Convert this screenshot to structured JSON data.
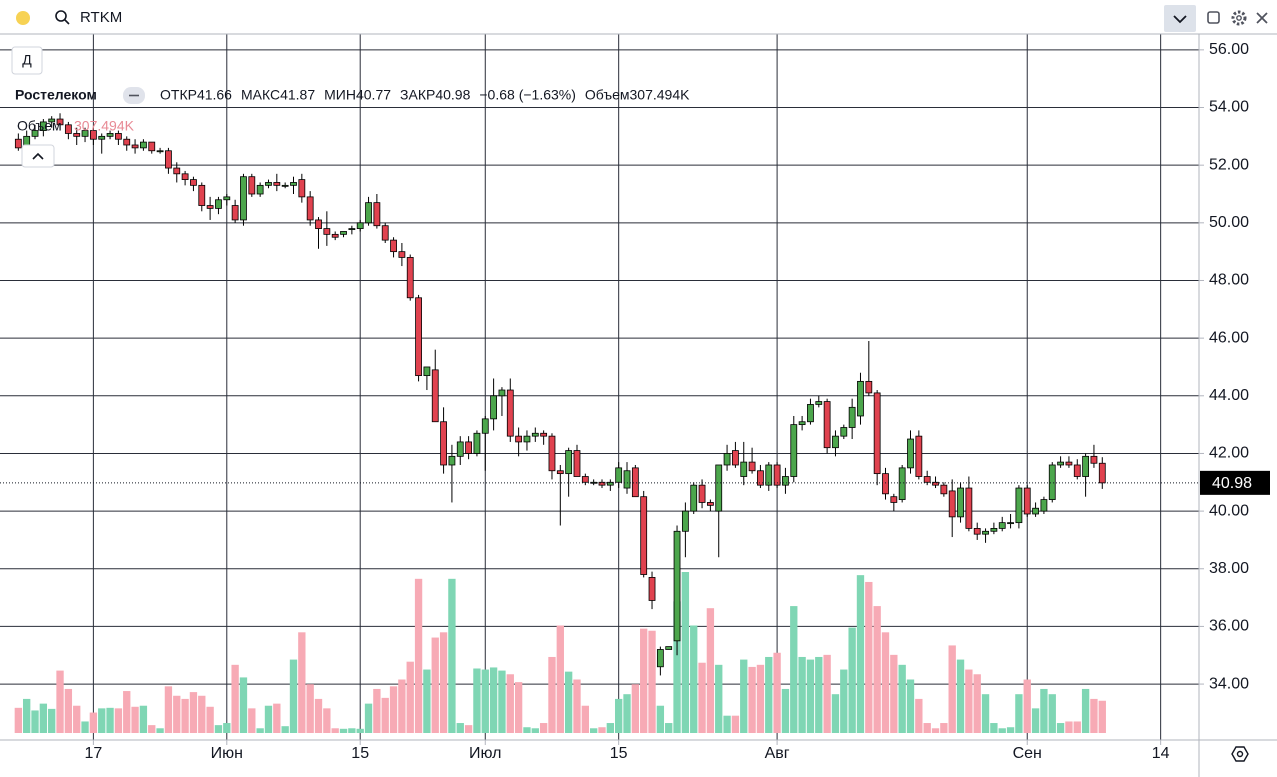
{
  "toolbar": {
    "symbol": "RTKM",
    "interval": "Д"
  },
  "chart_data": {
    "type": "candlestick",
    "legend": {
      "name": "Ростелеком",
      "open_label": "ОТКР",
      "high_label": "МАКС",
      "low_label": "МИН",
      "close_label": "ЗАКР",
      "change": "−0.68 (−1.63%)",
      "volume_name": "Объем",
      "volume_label": "307.494K"
    },
    "open": [
      52.9,
      52.6,
      53.0,
      53.2,
      53.5,
      53.6,
      53.4,
      53.1,
      53.0,
      53.2,
      52.9,
      53.0,
      53.1,
      52.9,
      52.7,
      52.6,
      52.8,
      52.5,
      52.5,
      51.9,
      51.7,
      51.5,
      51.3,
      50.6,
      50.5,
      50.8,
      50.6,
      50.1,
      51.6,
      51.0,
      51.3,
      51.4,
      51.3,
      51.3,
      51.5,
      50.9,
      50.1,
      49.8,
      49.6,
      49.6,
      49.8,
      49.8,
      50.0,
      50.7,
      49.9,
      49.4,
      49.0,
      48.8,
      47.4,
      44.7,
      44.9,
      43.1,
      41.6,
      41.9,
      42.4,
      42.0,
      42.7,
      43.2,
      44.0,
      44.2,
      42.6,
      42.4,
      42.6,
      42.7,
      42.6,
      41.4,
      41.3,
      42.1,
      41.2,
      41.0,
      41.0,
      40.9,
      41.0,
      40.8,
      41.5,
      40.5,
      37.7,
      34.6,
      35.2,
      35.5,
      39.3,
      40.0,
      40.9,
      40.3,
      40.0,
      41.6,
      42.1,
      41.2,
      41.7,
      41.4,
      40.9,
      41.6,
      40.9,
      41.2,
      43.0,
      43.1,
      43.7,
      43.8,
      42.2,
      42.6,
      42.9,
      43.3,
      44.5,
      44.1,
      41.3,
      40.5,
      40.4,
      41.5,
      42.6,
      41.2,
      41.0,
      40.9,
      40.7,
      39.8,
      40.8,
      39.4,
      39.2,
      39.3,
      39.4,
      39.6,
      39.6,
      40.8,
      39.9,
      40.0,
      40.4,
      41.6,
      41.7,
      41.6,
      41.2,
      41.9,
      41.66
    ],
    "high": [
      53.1,
      53.2,
      53.4,
      53.6,
      53.7,
      53.8,
      53.5,
      53.3,
      53.3,
      53.3,
      53.1,
      53.2,
      53.2,
      53.0,
      52.9,
      52.9,
      52.8,
      52.6,
      52.6,
      52.1,
      51.8,
      51.6,
      51.4,
      50.9,
      50.9,
      51.0,
      50.8,
      51.7,
      51.7,
      51.4,
      51.5,
      51.7,
      51.4,
      51.6,
      51.7,
      51.1,
      50.2,
      50.4,
      49.7,
      49.7,
      49.9,
      50.1,
      50.9,
      51.0,
      50.0,
      49.5,
      49.3,
      48.9,
      47.5,
      45.0,
      45.6,
      43.6,
      42.3,
      42.6,
      42.6,
      42.8,
      43.3,
      44.6,
      44.3,
      44.6,
      42.9,
      42.8,
      42.9,
      42.8,
      42.7,
      41.6,
      42.2,
      42.3,
      41.3,
      41.1,
      41.1,
      41.1,
      41.7,
      41.7,
      41.6,
      40.7,
      37.9,
      35.3,
      35.3,
      39.5,
      40.3,
      41.0,
      41.1,
      40.4,
      41.6,
      42.3,
      42.4,
      42.4,
      42.2,
      41.6,
      41.7,
      41.7,
      41.5,
      43.3,
      43.3,
      43.9,
      44.0,
      43.9,
      42.8,
      43.0,
      43.9,
      44.8,
      45.9,
      44.2,
      41.5,
      40.6,
      41.6,
      42.8,
      42.8,
      41.4,
      41.2,
      41.0,
      41.1,
      41.0,
      41.2,
      39.6,
      39.4,
      39.6,
      39.8,
      39.9,
      40.9,
      40.9,
      40.3,
      40.5,
      41.7,
      41.9,
      41.9,
      41.8,
      42.0,
      42.3,
      41.87
    ],
    "low": [
      52.5,
      52.5,
      52.9,
      53.0,
      53.3,
      53.2,
      52.9,
      52.7,
      52.8,
      52.7,
      52.4,
      52.9,
      52.7,
      52.5,
      52.4,
      52.5,
      52.4,
      52.4,
      51.7,
      51.4,
      51.3,
      51.1,
      50.4,
      50.1,
      50.3,
      50.6,
      50.0,
      49.9,
      50.9,
      50.9,
      51.2,
      51.1,
      51.2,
      51.0,
      50.7,
      49.9,
      49.1,
      49.2,
      49.4,
      49.5,
      49.6,
      49.7,
      49.9,
      49.8,
      49.3,
      48.8,
      48.5,
      47.3,
      44.5,
      44.2,
      43.1,
      41.3,
      40.3,
      41.6,
      41.8,
      41.9,
      41.4,
      42.8,
      43.3,
      42.4,
      41.9,
      42.1,
      42.4,
      42.3,
      41.1,
      39.5,
      40.5,
      41.2,
      40.9,
      40.9,
      40.8,
      40.7,
      40.8,
      40.6,
      40.5,
      37.7,
      36.6,
      34.3,
      35.2,
      35.0,
      38.4,
      39.9,
      40.1,
      40.0,
      38.4,
      41.4,
      41.5,
      40.9,
      41.3,
      40.8,
      40.7,
      40.8,
      40.6,
      41.0,
      42.8,
      43.0,
      43.6,
      42.0,
      41.9,
      42.5,
      42.5,
      43.0,
      44.0,
      40.9,
      40.4,
      40.0,
      40.3,
      41.3,
      41.1,
      40.9,
      40.8,
      40.5,
      39.1,
      39.6,
      39.3,
      39.0,
      38.9,
      39.2,
      39.3,
      39.4,
      39.4,
      39.8,
      39.8,
      39.9,
      40.3,
      41.5,
      41.5,
      41.1,
      40.5,
      41.5,
      40.77
    ],
    "close": [
      52.6,
      53.0,
      53.2,
      53.5,
      53.6,
      53.4,
      53.1,
      53.0,
      53.2,
      52.9,
      53.0,
      53.1,
      52.9,
      52.7,
      52.6,
      52.8,
      52.5,
      52.5,
      51.9,
      51.7,
      51.5,
      51.3,
      50.6,
      50.5,
      50.8,
      50.9,
      50.1,
      51.6,
      51.0,
      51.3,
      51.4,
      51.3,
      51.3,
      51.4,
      50.9,
      50.1,
      49.8,
      49.6,
      49.5,
      49.7,
      49.8,
      50.0,
      50.7,
      49.9,
      49.4,
      49.0,
      48.8,
      47.4,
      44.7,
      45.0,
      43.1,
      41.6,
      41.9,
      42.4,
      42.0,
      42.7,
      43.2,
      44.0,
      44.2,
      42.6,
      42.4,
      42.6,
      42.7,
      42.6,
      41.4,
      41.3,
      42.1,
      41.2,
      41.0,
      41.0,
      40.9,
      41.0,
      41.5,
      41.4,
      40.5,
      37.8,
      36.9,
      35.2,
      35.3,
      39.3,
      40.0,
      40.9,
      40.3,
      40.2,
      41.6,
      42.0,
      41.6,
      41.7,
      41.4,
      40.9,
      41.6,
      40.9,
      41.2,
      43.0,
      43.1,
      43.7,
      43.8,
      42.2,
      42.6,
      42.9,
      43.6,
      44.5,
      44.1,
      41.3,
      40.6,
      40.3,
      41.5,
      42.5,
      41.2,
      41.0,
      40.9,
      40.6,
      39.8,
      40.8,
      39.4,
      39.2,
      39.3,
      39.4,
      39.6,
      39.6,
      40.8,
      39.9,
      40.1,
      40.4,
      41.6,
      41.7,
      41.6,
      41.2,
      41.9,
      41.66,
      40.98
    ],
    "volume": [
      240000,
      325000,
      215000,
      280000,
      230000,
      595000,
      420000,
      260000,
      110000,
      195000,
      235000,
      240000,
      235000,
      400000,
      250000,
      260000,
      75000,
      45000,
      445000,
      355000,
      325000,
      390000,
      355000,
      250000,
      75000,
      95000,
      650000,
      530000,
      235000,
      45000,
      260000,
      280000,
      65000,
      700000,
      960000,
      465000,
      325000,
      235000,
      45000,
      40000,
      45000,
      40000,
      280000,
      420000,
      335000,
      445000,
      510000,
      680000,
      1470000,
      605000,
      910000,
      960000,
      1470000,
      95000,
      75000,
      615000,
      605000,
      625000,
      595000,
      560000,
      485000,
      55000,
      45000,
      95000,
      725000,
      1025000,
      585000,
      510000,
      260000,
      45000,
      55000,
      95000,
      325000,
      370000,
      465000,
      995000,
      975000,
      260000,
      95000,
      1255000,
      1535000,
      1025000,
      670000,
      1190000,
      650000,
      165000,
      165000,
      700000,
      630000,
      650000,
      725000,
      765000,
      420000,
      1210000,
      725000,
      700000,
      725000,
      745000,
      370000,
      605000,
      1005000,
      1505000,
      1440000,
      1210000,
      960000,
      745000,
      650000,
      510000,
      325000,
      95000,
      45000,
      95000,
      835000,
      700000,
      605000,
      560000,
      370000,
      95000,
      45000,
      55000,
      370000,
      510000,
      235000,
      420000,
      370000,
      95000,
      110000,
      110000,
      420000,
      325000,
      307494
    ],
    "up_color": "#4ca64c",
    "down_color": "#e0424f",
    "volume_up_color": "#7fd6b4",
    "volume_down_color": "#f7aab5",
    "xlim": [
      -2.2,
      141.6
    ],
    "xticks": [
      {
        "value": 9,
        "label": "17"
      },
      {
        "value": 25,
        "label": "Июн"
      },
      {
        "value": 41,
        "label": "15"
      },
      {
        "value": 56,
        "label": "Июл"
      },
      {
        "value": 72,
        "label": "15"
      },
      {
        "value": 91,
        "label": "Авг"
      },
      {
        "value": 121,
        "label": "Сен"
      },
      {
        "value": 137,
        "label": "14"
      }
    ],
    "ylim": [
      32.06,
      56.55
    ],
    "yticks": [
      {
        "value": 34,
        "label": "34.00"
      },
      {
        "value": 36,
        "label": "36.00"
      },
      {
        "value": 38,
        "label": "38.00"
      },
      {
        "value": 40,
        "label": "40.00"
      },
      {
        "value": 42,
        "label": "42.00"
      },
      {
        "value": 44,
        "label": "44.00"
      },
      {
        "value": 46,
        "label": "46.00"
      },
      {
        "value": 48,
        "label": "48.00"
      },
      {
        "value": 50,
        "label": "50.00"
      },
      {
        "value": 52,
        "label": "52.00"
      },
      {
        "value": 54,
        "label": "54.00"
      },
      {
        "value": 56,
        "label": "56.00"
      }
    ],
    "grid": true
  }
}
